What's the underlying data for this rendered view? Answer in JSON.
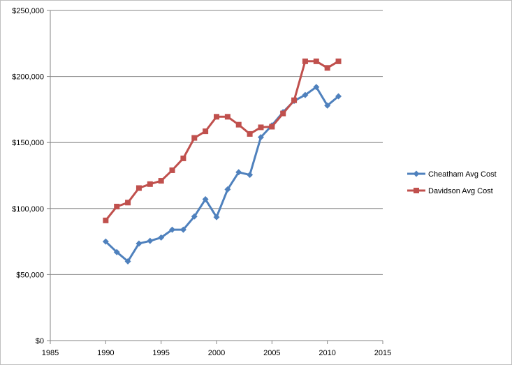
{
  "chart_data": {
    "type": "scatter",
    "title": "",
    "xlabel": "",
    "ylabel": "",
    "xlim": [
      1985,
      2015
    ],
    "ylim": [
      0,
      250000
    ],
    "x_ticks": [
      1985,
      1990,
      1995,
      2000,
      2005,
      2010,
      2015
    ],
    "y_ticks": [
      0,
      50000,
      100000,
      150000,
      200000,
      250000
    ],
    "x_tick_labels": [
      "1985",
      "1990",
      "1995",
      "2000",
      "2005",
      "2010",
      "2015"
    ],
    "y_tick_labels": [
      "$0",
      "$50,000",
      "$100,000",
      "$150,000",
      "$200,000",
      "$250,000"
    ],
    "grid": "horizontal",
    "legend_position": "right",
    "series": [
      {
        "name": "Cheatham Avg Cost",
        "color": "#4f81bd",
        "marker": "diamond",
        "x": [
          1990,
          1991,
          1992,
          1993,
          1994,
          1995,
          1996,
          1997,
          1998,
          1999,
          2000,
          2001,
          2002,
          2003,
          2004,
          2005,
          2006,
          2007,
          2008,
          2009,
          2010,
          2011
        ],
        "y": [
          75000,
          67000,
          60000,
          73500,
          75500,
          78000,
          84000,
          84000,
          94000,
          107000,
          93500,
          114500,
          127500,
          125500,
          154000,
          163000,
          173000,
          181500,
          186000,
          192000,
          178000,
          185000
        ]
      },
      {
        "name": "Davidson Avg Cost",
        "color": "#c0504d",
        "marker": "square",
        "x": [
          1990,
          1991,
          1992,
          1993,
          1994,
          1995,
          1996,
          1997,
          1998,
          1999,
          2000,
          2001,
          2002,
          2003,
          2004,
          2005,
          2006,
          2007,
          2008,
          2009,
          2010,
          2011
        ],
        "y": [
          91000,
          101500,
          104500,
          115500,
          118500,
          121000,
          129000,
          138000,
          153500,
          158500,
          169500,
          169500,
          163500,
          156500,
          161500,
          162000,
          172000,
          182000,
          211500,
          211500,
          206500,
          211500
        ]
      }
    ]
  }
}
